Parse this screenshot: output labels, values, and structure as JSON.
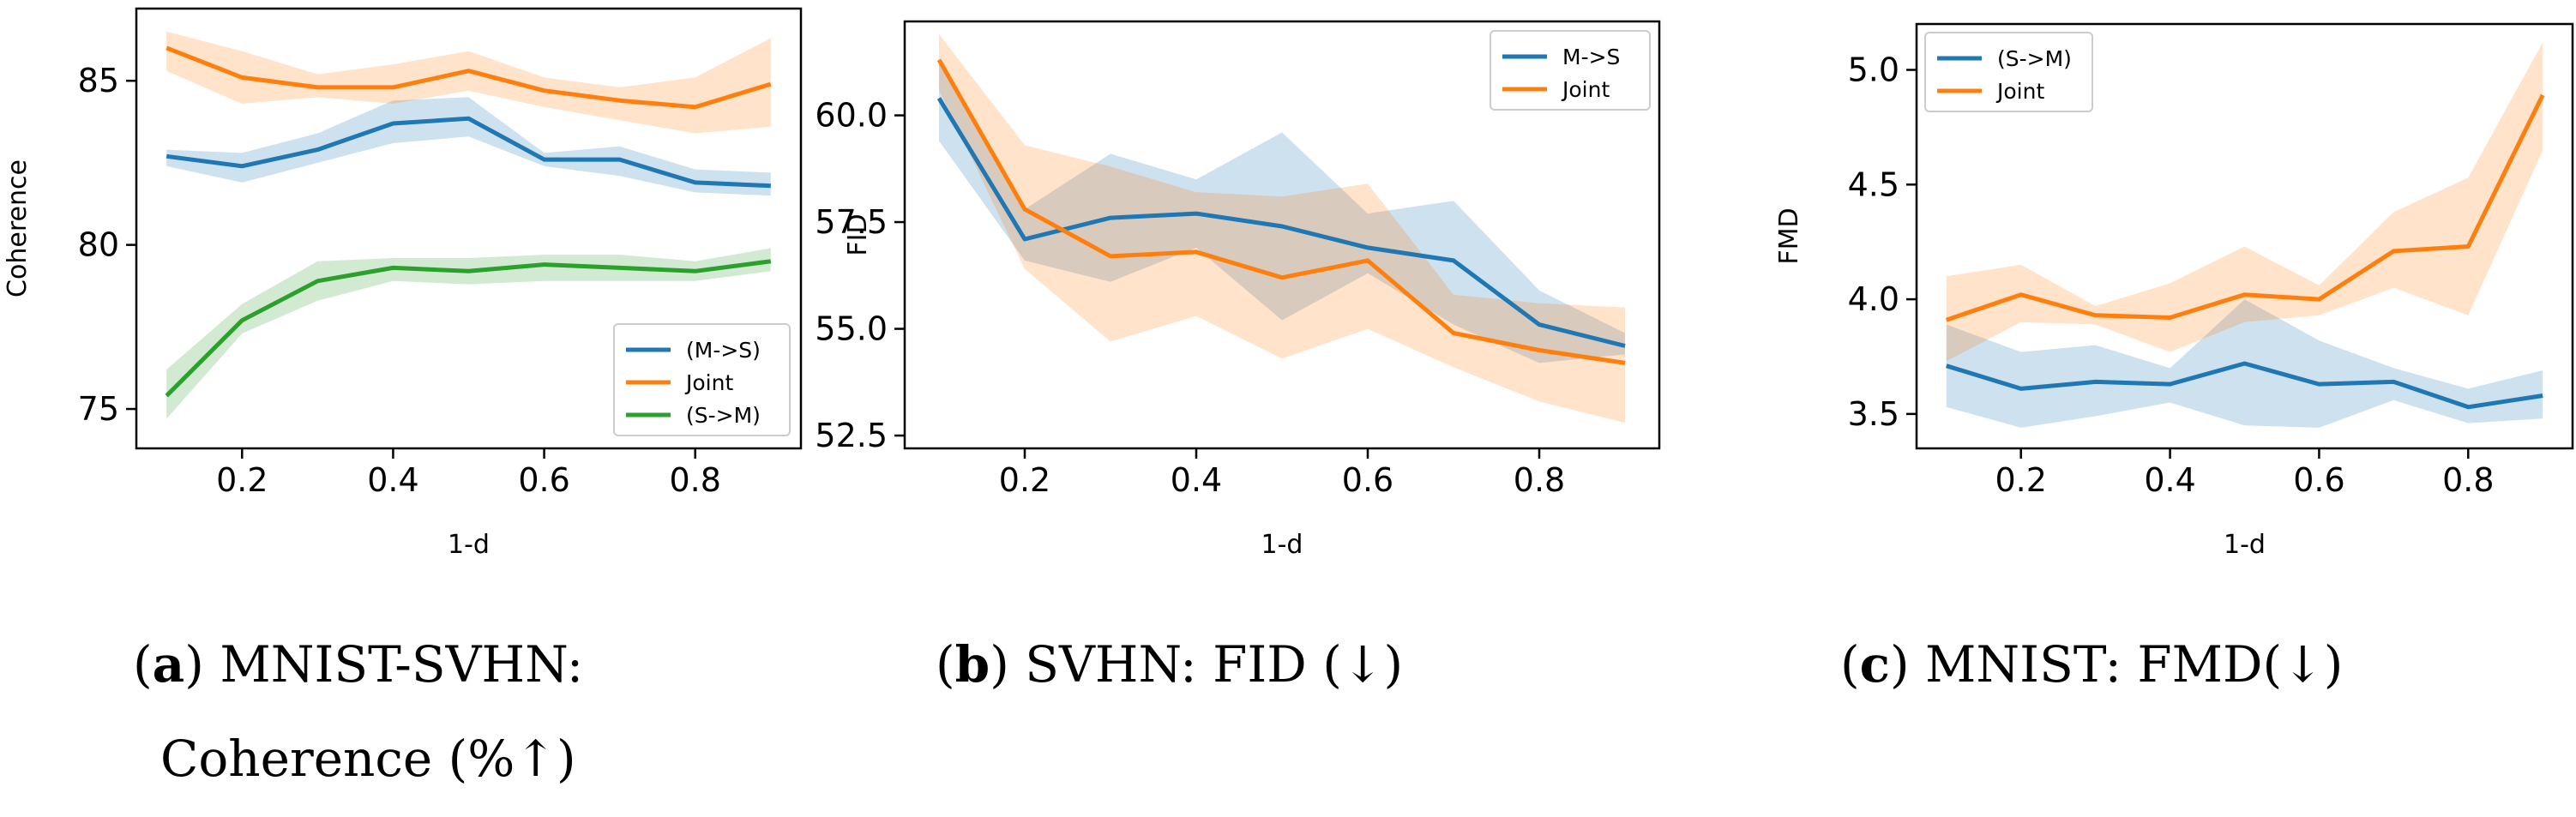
{
  "chart_data": [
    {
      "type": "line",
      "panel_tag": "a",
      "caption_lines": [
        "MNIST-SVHN:",
        "Coherence (%↑)"
      ],
      "xlabel": "1-d",
      "ylabel": "Coherence",
      "xlim": [
        0.06,
        0.94
      ],
      "ylim": [
        73.8,
        87.2
      ],
      "xticks": [
        0.2,
        0.4,
        0.6,
        0.8
      ],
      "xtick_labels": [
        "0.2",
        "0.4",
        "0.6",
        "0.8"
      ],
      "yticks": [
        75,
        80,
        85
      ],
      "ytick_labels": [
        "75",
        "80",
        "85"
      ],
      "legend_position": "lower-right",
      "x": [
        0.1,
        0.2,
        0.3,
        0.4,
        0.5,
        0.6,
        0.7,
        0.8,
        0.9
      ],
      "series": [
        {
          "name": "(M->S)",
          "color": "#1f77b4",
          "values": [
            82.7,
            82.4,
            82.9,
            83.7,
            83.85,
            82.6,
            82.6,
            81.9,
            81.8
          ],
          "lower": [
            82.4,
            81.9,
            82.5,
            83.1,
            83.3,
            82.4,
            82.1,
            81.6,
            81.5
          ],
          "upper": [
            82.9,
            82.8,
            83.4,
            84.4,
            84.5,
            82.8,
            83.0,
            82.3,
            82.2
          ]
        },
        {
          "name": "Joint",
          "color": "#ff7f0e",
          "values": [
            86.0,
            85.1,
            84.8,
            84.8,
            85.3,
            84.7,
            84.4,
            84.2,
            84.9
          ],
          "lower": [
            85.3,
            84.3,
            84.5,
            84.3,
            84.7,
            84.2,
            83.8,
            83.4,
            83.6
          ],
          "upper": [
            86.5,
            85.9,
            85.2,
            85.5,
            85.9,
            85.1,
            84.8,
            85.1,
            86.3
          ]
        },
        {
          "name": "(S->M)",
          "color": "#2ca02c",
          "values": [
            75.4,
            77.7,
            78.9,
            79.3,
            79.2,
            79.4,
            79.3,
            79.2,
            79.5
          ],
          "lower": [
            74.7,
            77.3,
            78.3,
            78.9,
            78.8,
            78.9,
            78.9,
            78.9,
            79.2
          ],
          "upper": [
            76.2,
            78.2,
            79.5,
            79.6,
            79.6,
            79.7,
            79.7,
            79.5,
            79.9
          ]
        }
      ]
    },
    {
      "type": "line",
      "panel_tag": "b",
      "caption_lines": [
        "SVHN: FID (↓)"
      ],
      "xlabel": "1-d",
      "ylabel": "FID",
      "xlim": [
        0.06,
        0.94
      ],
      "ylim": [
        52.2,
        62.2
      ],
      "xticks": [
        0.2,
        0.4,
        0.6,
        0.8
      ],
      "xtick_labels": [
        "0.2",
        "0.4",
        "0.6",
        "0.8"
      ],
      "yticks": [
        52.5,
        55.0,
        57.5,
        60.0
      ],
      "ytick_labels": [
        "52.5",
        "55.0",
        "57.5",
        "60.0"
      ],
      "legend_position": "top-right",
      "x": [
        0.1,
        0.2,
        0.3,
        0.4,
        0.5,
        0.6,
        0.7,
        0.8,
        0.9
      ],
      "series": [
        {
          "name": "M->S",
          "color": "#1f77b4",
          "values": [
            60.4,
            57.1,
            57.6,
            57.7,
            57.4,
            56.9,
            56.6,
            55.1,
            54.6
          ],
          "lower": [
            59.4,
            56.6,
            56.1,
            56.9,
            55.2,
            56.3,
            55.1,
            54.2,
            54.4
          ],
          "upper": [
            61.3,
            57.8,
            59.1,
            58.5,
            59.6,
            57.7,
            58.0,
            55.9,
            54.9
          ]
        },
        {
          "name": "Joint",
          "color": "#ff7f0e",
          "values": [
            61.3,
            57.8,
            56.7,
            56.8,
            56.2,
            56.6,
            54.9,
            54.5,
            54.2
          ],
          "lower": [
            60.6,
            56.4,
            54.7,
            55.3,
            54.3,
            55.0,
            54.1,
            53.3,
            52.8
          ],
          "upper": [
            61.9,
            59.3,
            58.8,
            58.2,
            58.1,
            58.4,
            55.8,
            55.6,
            55.5
          ]
        }
      ]
    },
    {
      "type": "line",
      "panel_tag": "c",
      "caption_lines": [
        "MNIST: FMD(↓)"
      ],
      "xlabel": "1-d",
      "ylabel": "FMD",
      "xlim": [
        0.06,
        0.94
      ],
      "ylim": [
        3.35,
        5.2
      ],
      "xticks": [
        0.2,
        0.4,
        0.6,
        0.8
      ],
      "xtick_labels": [
        "0.2",
        "0.4",
        "0.6",
        "0.8"
      ],
      "yticks": [
        3.5,
        4.0,
        4.5,
        5.0
      ],
      "ytick_labels": [
        "3.5",
        "4.0",
        "4.5",
        "5.0"
      ],
      "legend_position": "top-left",
      "x": [
        0.1,
        0.2,
        0.3,
        0.4,
        0.5,
        0.6,
        0.7,
        0.8,
        0.9
      ],
      "series": [
        {
          "name": "(S->M)",
          "color": "#1f77b4",
          "values": [
            3.71,
            3.61,
            3.64,
            3.63,
            3.72,
            3.63,
            3.64,
            3.53,
            3.58
          ],
          "lower": [
            3.53,
            3.44,
            3.49,
            3.55,
            3.45,
            3.44,
            3.56,
            3.46,
            3.48
          ],
          "upper": [
            3.89,
            3.77,
            3.8,
            3.7,
            4.0,
            3.82,
            3.7,
            3.61,
            3.69
          ]
        },
        {
          "name": "Joint",
          "color": "#ff7f0e",
          "values": [
            3.91,
            4.02,
            3.93,
            3.92,
            4.02,
            4.0,
            4.21,
            4.23,
            4.89
          ],
          "lower": [
            3.73,
            3.9,
            3.89,
            3.77,
            3.9,
            3.93,
            4.05,
            3.93,
            4.65
          ],
          "upper": [
            4.1,
            4.15,
            3.97,
            4.07,
            4.23,
            4.06,
            4.38,
            4.53,
            5.12
          ]
        }
      ]
    }
  ]
}
